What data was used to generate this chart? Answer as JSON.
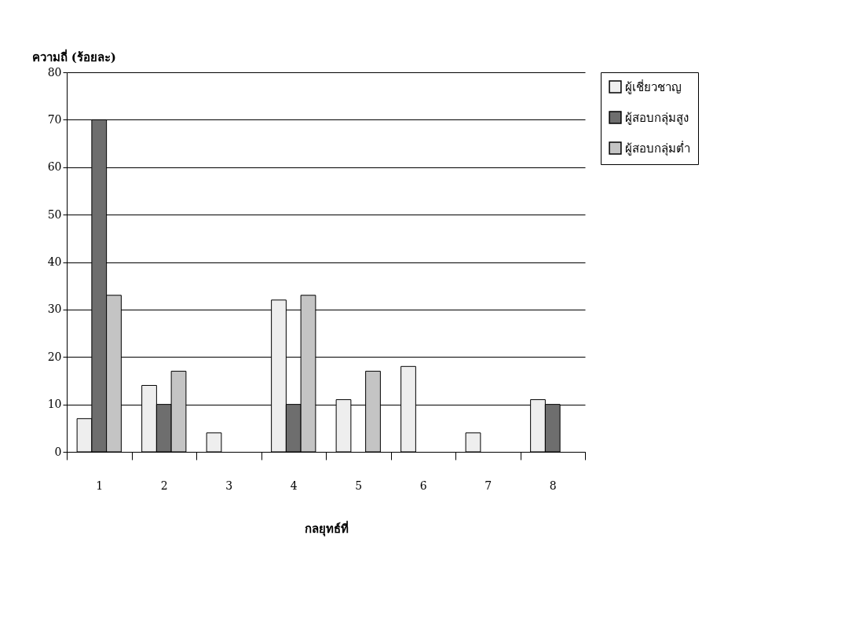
{
  "chart_data": {
    "type": "bar",
    "xlabel": "กลยุทธ์ที่",
    "ylabel": "ความถี่ (ร้อยละ)",
    "categories": [
      "1",
      "2",
      "3",
      "4",
      "5",
      "6",
      "7",
      "8"
    ],
    "series": [
      {
        "name": "ผู้เชี่ยวชาญ",
        "color": "#eeeeee",
        "values": [
          7,
          14,
          4,
          32,
          11,
          18,
          4,
          11
        ]
      },
      {
        "name": "ผู้สอบกลุ่มสูง",
        "color": "#6e6e6e",
        "values": [
          70,
          10,
          null,
          10,
          null,
          null,
          null,
          10
        ]
      },
      {
        "name": "ผู้สอบกลุ่มต่ำ",
        "color": "#c4c4c4",
        "values": [
          33,
          17,
          null,
          33,
          17,
          null,
          null,
          null
        ]
      }
    ],
    "ylim": [
      0,
      80
    ],
    "yticks": [
      0,
      10,
      20,
      30,
      40,
      50,
      60,
      70,
      80
    ],
    "grid": "y",
    "legend": "right"
  }
}
